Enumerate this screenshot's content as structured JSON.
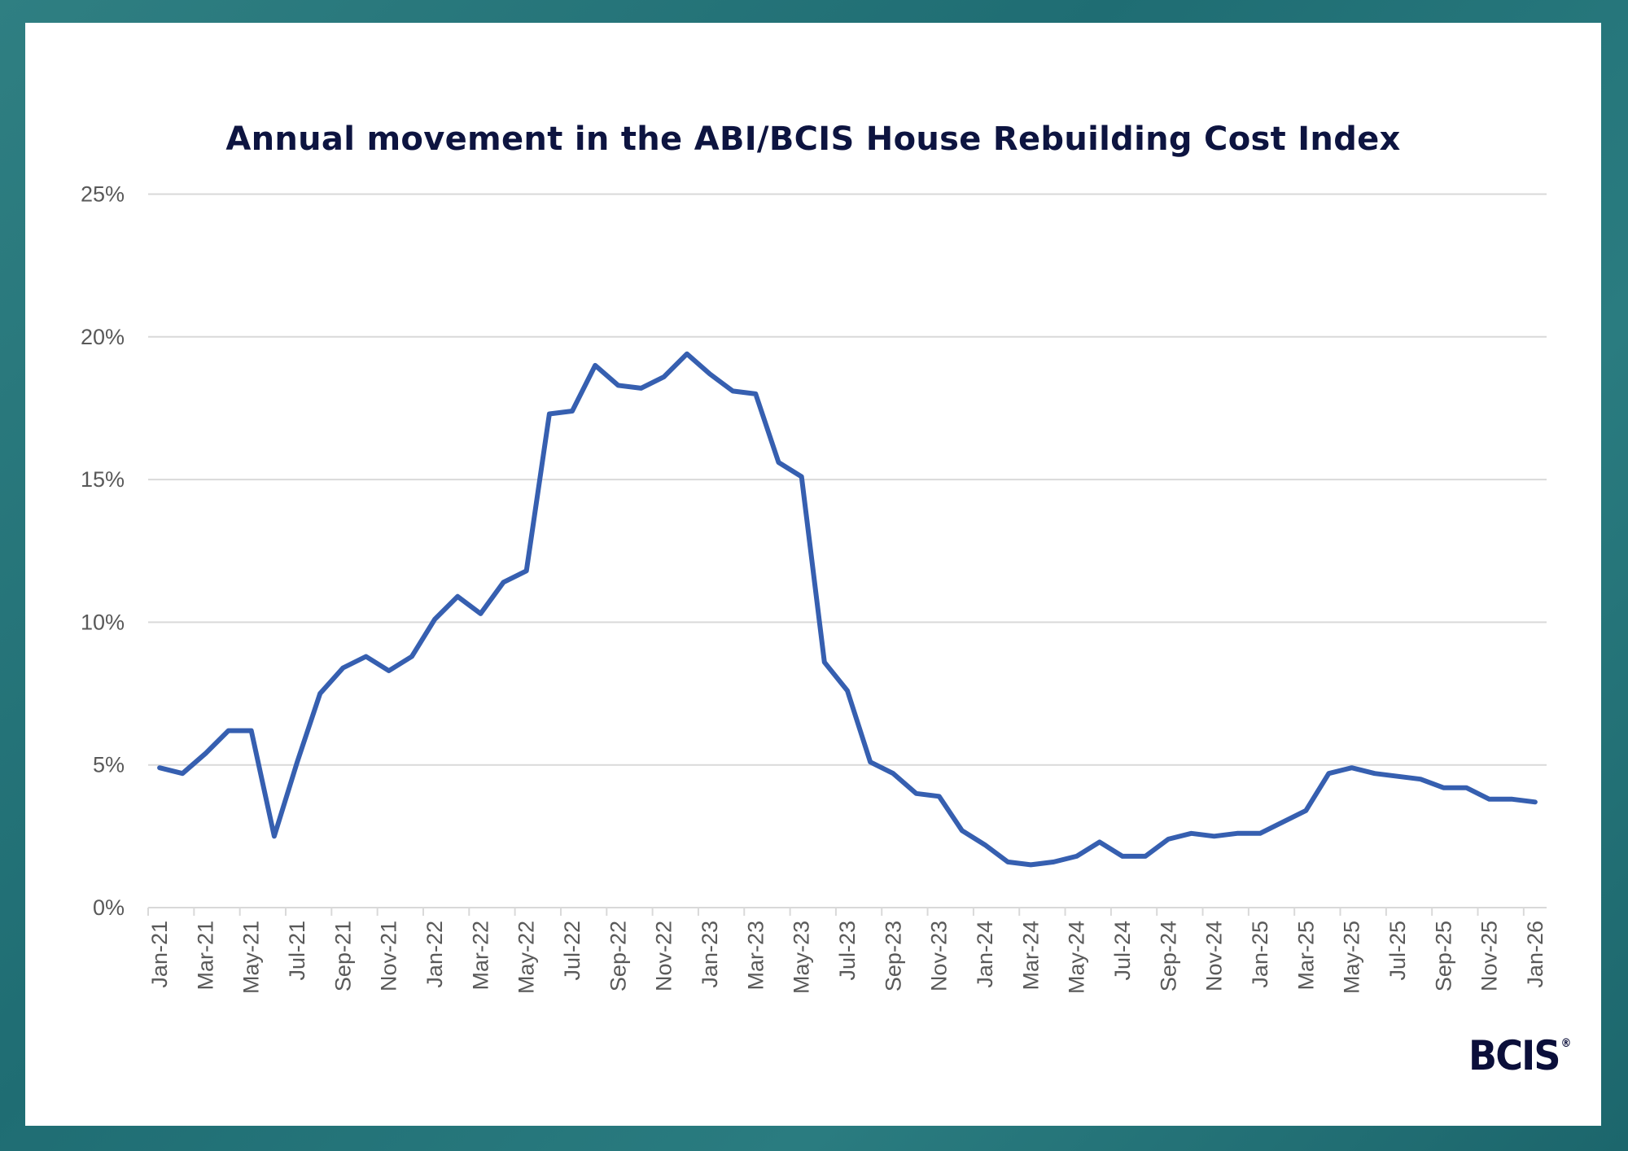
{
  "chart_data": {
    "type": "line",
    "title": "Annual movement in the ABI/BCIS House Rebuilding Cost Index",
    "xlabel": "",
    "ylabel": "",
    "ylim": [
      0,
      25
    ],
    "yticks": [
      "0%",
      "5%",
      "10%",
      "15%",
      "20%",
      "25%"
    ],
    "ytick_values": [
      0,
      5,
      10,
      15,
      20,
      25
    ],
    "grid": true,
    "legend": "none",
    "line_color": "#365fb0",
    "x": [
      "Jan-21",
      "Feb-21",
      "Mar-21",
      "Apr-21",
      "May-21",
      "Jun-21",
      "Jul-21",
      "Aug-21",
      "Sep-21",
      "Oct-21",
      "Nov-21",
      "Dec-21",
      "Jan-22",
      "Feb-22",
      "Mar-22",
      "Apr-22",
      "May-22",
      "Jun-22",
      "Jul-22",
      "Aug-22",
      "Sep-22",
      "Oct-22",
      "Nov-22",
      "Dec-22",
      "Jan-23",
      "Feb-23",
      "Mar-23",
      "Apr-23",
      "May-23",
      "Jun-23",
      "Jul-23",
      "Aug-23",
      "Sep-23",
      "Oct-23",
      "Nov-23",
      "Dec-23",
      "Jan-24",
      "Feb-24",
      "Mar-24",
      "Apr-24",
      "May-24",
      "Jun-24",
      "Jul-24",
      "Aug-24",
      "Sep-24",
      "Oct-24",
      "Nov-24",
      "Dec-24",
      "Jan-25",
      "Feb-25",
      "Mar-25",
      "Apr-25",
      "May-25",
      "Jun-25",
      "Jul-25",
      "Aug-25",
      "Sep-25",
      "Oct-25",
      "Nov-25",
      "Dec-25",
      "Jan-26"
    ],
    "series": [
      {
        "name": "Annual movement",
        "values": [
          4.9,
          4.7,
          5.4,
          6.2,
          6.2,
          2.5,
          5.1,
          7.5,
          8.4,
          8.8,
          8.3,
          8.8,
          10.1,
          10.9,
          10.3,
          11.4,
          11.8,
          17.3,
          17.4,
          19.0,
          18.3,
          18.2,
          18.6,
          19.4,
          18.7,
          18.1,
          18.0,
          15.6,
          15.1,
          8.6,
          7.6,
          5.1,
          4.7,
          4.0,
          3.9,
          2.7,
          2.2,
          1.6,
          1.5,
          1.6,
          1.8,
          2.3,
          1.8,
          1.8,
          2.4,
          2.6,
          2.5,
          2.6,
          2.6,
          3.0,
          3.4,
          4.7,
          4.9,
          4.7,
          4.6,
          4.5,
          4.2,
          4.2,
          3.8,
          3.8,
          3.7
        ]
      }
    ]
  },
  "logo": {
    "text": "BCIS",
    "mark": "®"
  }
}
